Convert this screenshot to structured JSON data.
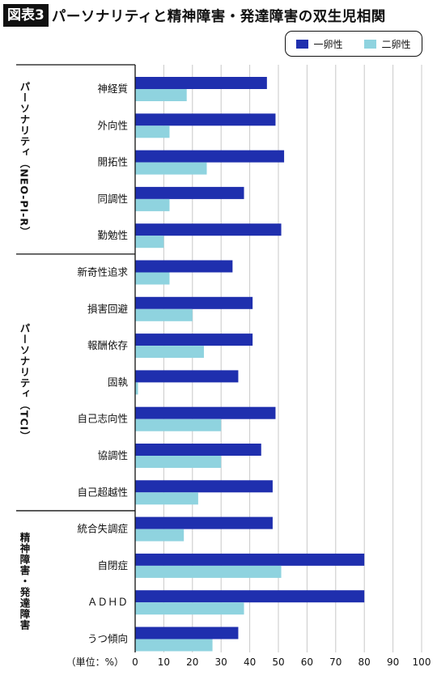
{
  "header": {
    "badge": "図表3",
    "title": "パーソナリティと精神障害・発達障害の双生児相関"
  },
  "colors": {
    "mz": "#1f2fae",
    "dz": "#8fd3df",
    "grid": "#c8c8c8"
  },
  "chart_data": {
    "type": "bar",
    "orientation": "horizontal",
    "xlim": [
      0,
      100
    ],
    "xticks": [
      0,
      10,
      20,
      30,
      40,
      50,
      60,
      70,
      80,
      90,
      100
    ],
    "xunit_label": "（単位：%）",
    "legend_position": "top-right",
    "series": [
      {
        "name": "一卵性",
        "color": "#1f2fae"
      },
      {
        "name": "二卵性",
        "color": "#8fd3df"
      }
    ],
    "groups": [
      {
        "label": "パーソナリティ（NEO-PI-R）",
        "items": [
          {
            "label": "神経質",
            "values": [
              46,
              18
            ]
          },
          {
            "label": "外向性",
            "values": [
              49,
              12
            ]
          },
          {
            "label": "開拓性",
            "values": [
              52,
              25
            ]
          },
          {
            "label": "同調性",
            "values": [
              38,
              12
            ]
          },
          {
            "label": "勤勉性",
            "values": [
              51,
              10
            ]
          }
        ]
      },
      {
        "label": "パーソナリティ（TCI）",
        "items": [
          {
            "label": "新奇性追求",
            "values": [
              34,
              12
            ]
          },
          {
            "label": "損害回避",
            "values": [
              41,
              20
            ]
          },
          {
            "label": "報酬依存",
            "values": [
              41,
              24
            ]
          },
          {
            "label": "固執",
            "values": [
              36,
              1
            ]
          },
          {
            "label": "自己志向性",
            "values": [
              49,
              30
            ]
          },
          {
            "label": "協調性",
            "values": [
              44,
              30
            ]
          },
          {
            "label": "自己超越性",
            "values": [
              48,
              22
            ]
          }
        ]
      },
      {
        "label": "精神障害・発達障害",
        "items": [
          {
            "label": "統合失調症",
            "values": [
              48,
              17
            ]
          },
          {
            "label": "自閉症",
            "values": [
              80,
              51
            ]
          },
          {
            "label": "ＡＤＨＤ",
            "values": [
              80,
              38
            ]
          },
          {
            "label": "うつ傾向",
            "values": [
              36,
              27
            ]
          }
        ]
      }
    ]
  }
}
